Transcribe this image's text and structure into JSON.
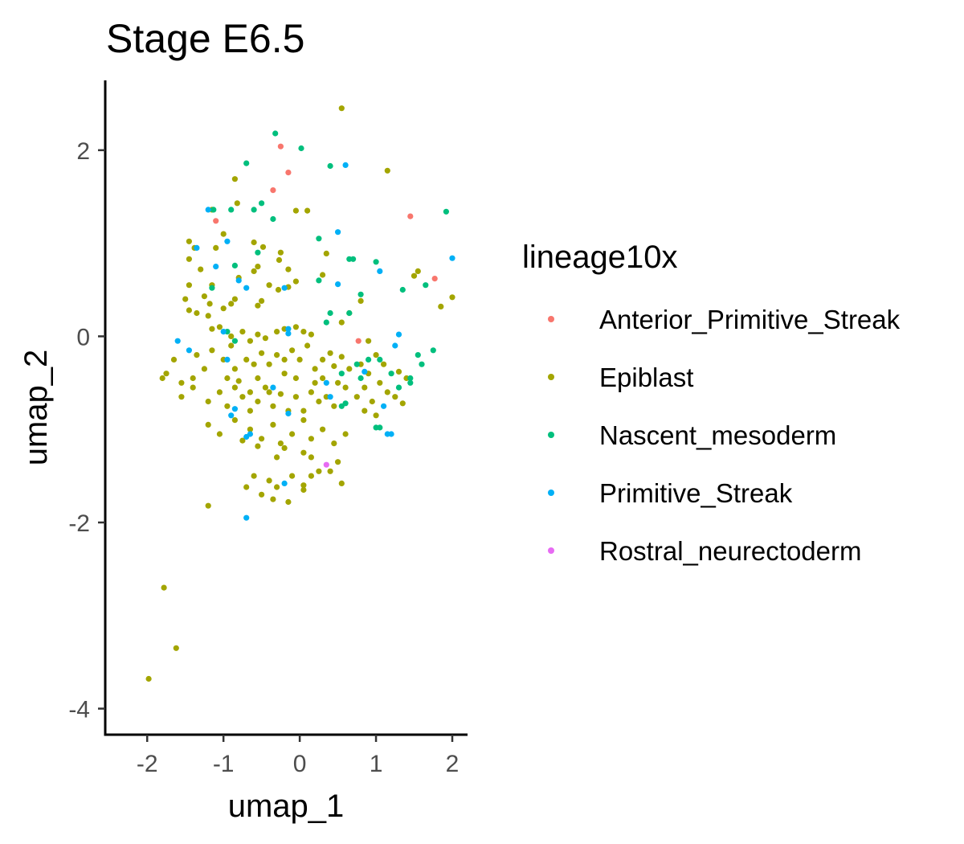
{
  "chart_data": {
    "type": "scatter",
    "title": "Stage E6.5",
    "xlabel": "umap_1",
    "ylabel": "umap_2",
    "xlim": [
      -2.55,
      2.2
    ],
    "ylim": [
      -4.28,
      2.75
    ],
    "xticks": [
      -2,
      -1,
      0,
      1,
      2
    ],
    "yticks": [
      -4,
      -2,
      0,
      2
    ],
    "xtick_labels": [
      "-2",
      "-1",
      "0",
      "1",
      "2"
    ],
    "ytick_labels": [
      "-4",
      "-2",
      "0",
      "2"
    ],
    "grid": false,
    "legend": {
      "title": "lineage10x",
      "position": "right"
    },
    "series": [
      {
        "name": "Anterior_Primitive_Streak",
        "color": "#F8766D",
        "points": [
          [
            -0.25,
            2.04
          ],
          [
            -0.15,
            1.76
          ],
          [
            -0.35,
            1.57
          ],
          [
            1.45,
            1.29
          ],
          [
            1.77,
            0.62
          ],
          [
            -1.1,
            1.24
          ],
          [
            0.77,
            -0.05
          ]
        ]
      },
      {
        "name": "Epiblast",
        "color": "#A3A500",
        "points": [
          [
            0.55,
            2.45
          ],
          [
            1.15,
            1.78
          ],
          [
            -0.85,
            1.69
          ],
          [
            -1.0,
            1.1
          ],
          [
            -0.05,
            1.35
          ],
          [
            0.1,
            1.35
          ],
          [
            -0.82,
            1.43
          ],
          [
            -1.15,
            1.36
          ],
          [
            -1.45,
            1.02
          ],
          [
            -1.38,
            0.95
          ],
          [
            -1.45,
            0.83
          ],
          [
            -1.1,
            0.95
          ],
          [
            -1.3,
            0.72
          ],
          [
            -0.6,
            1.01
          ],
          [
            -0.48,
            0.96
          ],
          [
            -0.25,
            0.9
          ],
          [
            -0.15,
            0.72
          ],
          [
            -0.55,
            0.75
          ],
          [
            -0.27,
            0.82
          ],
          [
            0.35,
            0.89
          ],
          [
            0.3,
            0.66
          ],
          [
            -0.4,
            0.55
          ],
          [
            -0.8,
            0.63
          ],
          [
            -0.6,
            0.7
          ],
          [
            -0.15,
            0.53
          ],
          [
            -0.28,
            0.5
          ],
          [
            -0.05,
            0.59
          ],
          [
            -1.15,
            0.55
          ],
          [
            -1.45,
            0.55
          ],
          [
            -1.5,
            0.4
          ],
          [
            -1.25,
            0.43
          ],
          [
            -1.18,
            0.35
          ],
          [
            -1.35,
            0.25
          ],
          [
            -1.45,
            0.28
          ],
          [
            -1.2,
            0.22
          ],
          [
            -1.0,
            0.3
          ],
          [
            -0.9,
            0.35
          ],
          [
            -0.85,
            0.4
          ],
          [
            -0.55,
            0.33
          ],
          [
            -0.5,
            0.38
          ],
          [
            -1.15,
            0.08
          ],
          [
            -1.05,
            0.1
          ],
          [
            -0.9,
            0.0
          ],
          [
            -0.75,
            0.05
          ],
          [
            -0.65,
            -0.05
          ],
          [
            -0.55,
            0.02
          ],
          [
            -0.45,
            -0.02
          ],
          [
            -0.3,
            0.05
          ],
          [
            -0.2,
            0.08
          ],
          [
            -0.05,
            0.1
          ],
          [
            0.05,
            0.05
          ],
          [
            0.15,
            0.02
          ],
          [
            -1.75,
            -0.4
          ],
          [
            -1.8,
            -0.45
          ],
          [
            -1.65,
            -0.25
          ],
          [
            -1.55,
            -0.5
          ],
          [
            -1.4,
            -0.45
          ],
          [
            -1.35,
            -0.2
          ],
          [
            -1.25,
            -0.35
          ],
          [
            -1.15,
            -0.15
          ],
          [
            -1.0,
            -0.25
          ],
          [
            -0.9,
            -0.1
          ],
          [
            -0.85,
            -0.35
          ],
          [
            -0.7,
            -0.25
          ],
          [
            -0.6,
            -0.3
          ],
          [
            -0.5,
            -0.18
          ],
          [
            -0.4,
            -0.3
          ],
          [
            -0.3,
            -0.2
          ],
          [
            -0.2,
            -0.25
          ],
          [
            -0.1,
            -0.15
          ],
          [
            0.0,
            -0.25
          ],
          [
            0.1,
            -0.1
          ],
          [
            0.2,
            -0.35
          ],
          [
            0.3,
            -0.25
          ],
          [
            0.4,
            -0.18
          ],
          [
            0.45,
            -0.32
          ],
          [
            0.55,
            -0.22
          ],
          [
            0.65,
            -0.35
          ],
          [
            -1.55,
            -0.65
          ],
          [
            -1.4,
            -0.55
          ],
          [
            -1.2,
            -0.7
          ],
          [
            -1.05,
            -0.6
          ],
          [
            -0.95,
            -0.75
          ],
          [
            -0.85,
            -0.55
          ],
          [
            -0.75,
            -0.65
          ],
          [
            -0.65,
            -0.8
          ],
          [
            -0.55,
            -0.7
          ],
          [
            -0.45,
            -0.55
          ],
          [
            -0.35,
            -0.75
          ],
          [
            -0.25,
            -0.62
          ],
          [
            -0.15,
            -0.8
          ],
          [
            -0.05,
            -0.65
          ],
          [
            0.05,
            -0.8
          ],
          [
            0.15,
            -0.6
          ],
          [
            0.25,
            -0.7
          ],
          [
            0.35,
            -0.65
          ],
          [
            0.45,
            -0.75
          ],
          [
            0.6,
            -0.55
          ],
          [
            0.75,
            -0.65
          ],
          [
            0.85,
            -0.55
          ],
          [
            0.95,
            -0.7
          ],
          [
            1.05,
            -0.5
          ],
          [
            1.15,
            -0.6
          ],
          [
            -1.2,
            -0.95
          ],
          [
            -1.05,
            -1.05
          ],
          [
            -0.85,
            -0.9
          ],
          [
            -0.65,
            -1.0
          ],
          [
            -0.5,
            -1.1
          ],
          [
            -0.35,
            -0.95
          ],
          [
            -0.25,
            -1.15
          ],
          [
            -0.1,
            -1.05
          ],
          [
            0.05,
            -0.9
          ],
          [
            0.15,
            -1.1
          ],
          [
            0.3,
            -1.0
          ],
          [
            0.45,
            -1.15
          ],
          [
            0.6,
            -1.05
          ],
          [
            -0.75,
            -1.12
          ],
          [
            -0.55,
            -1.18
          ],
          [
            -0.3,
            -1.3
          ],
          [
            -0.2,
            -1.2
          ],
          [
            0.05,
            -1.25
          ],
          [
            0.15,
            -1.3
          ],
          [
            0.25,
            -1.45
          ],
          [
            0.4,
            -1.45
          ],
          [
            0.5,
            -1.35
          ],
          [
            -0.6,
            -1.5
          ],
          [
            -0.4,
            -1.55
          ],
          [
            -0.3,
            -1.62
          ],
          [
            -0.1,
            -1.5
          ],
          [
            0.05,
            -1.6
          ],
          [
            0.15,
            -1.5
          ],
          [
            0.55,
            -1.58
          ],
          [
            -0.7,
            -1.62
          ],
          [
            -0.5,
            -1.7
          ],
          [
            -0.35,
            -1.75
          ],
          [
            -0.15,
            -1.78
          ],
          [
            0.05,
            -1.65
          ],
          [
            -1.2,
            -1.82
          ],
          [
            -1.78,
            -2.7
          ],
          [
            -1.62,
            -3.35
          ],
          [
            -1.98,
            -3.68
          ],
          [
            1.5,
            0.65
          ],
          [
            1.55,
            0.7
          ],
          [
            1.85,
            0.32
          ],
          [
            2.0,
            0.42
          ],
          [
            0.8,
            0.38
          ],
          [
            0.65,
            0.25
          ],
          [
            0.55,
            0.15
          ],
          [
            0.9,
            -0.05
          ],
          [
            1.0,
            -0.2
          ],
          [
            0.9,
            -0.4
          ],
          [
            0.8,
            -0.3
          ],
          [
            1.3,
            -0.38
          ],
          [
            1.4,
            -0.45
          ],
          [
            1.35,
            -0.72
          ],
          [
            1.25,
            -0.65
          ],
          [
            0.85,
            -0.8
          ],
          [
            1.0,
            -0.85
          ],
          [
            -0.95,
            -0.45
          ],
          [
            -0.8,
            -0.48
          ],
          [
            0.2,
            -0.5
          ],
          [
            0.3,
            -0.45
          ],
          [
            -0.05,
            -0.45
          ],
          [
            -0.2,
            -0.4
          ],
          [
            -0.55,
            -0.45
          ],
          [
            -0.4,
            -0.6
          ],
          [
            -0.65,
            -0.6
          ],
          [
            0.5,
            -0.5
          ],
          [
            1.1,
            -0.3
          ]
        ]
      },
      {
        "name": "Nascent_mesoderm",
        "color": "#00BF7D",
        "points": [
          [
            -0.32,
            2.18
          ],
          [
            0.02,
            2.02
          ],
          [
            -0.7,
            1.86
          ],
          [
            0.4,
            1.83
          ],
          [
            1.92,
            1.34
          ],
          [
            -1.13,
            1.36
          ],
          [
            -0.6,
            1.36
          ],
          [
            -0.5,
            1.43
          ],
          [
            -0.35,
            1.26
          ],
          [
            -0.9,
            1.36
          ],
          [
            -0.85,
            0.76
          ],
          [
            -1.15,
            0.52
          ],
          [
            -0.55,
            0.9
          ],
          [
            0.25,
            1.05
          ],
          [
            0.7,
            0.83
          ],
          [
            0.65,
            0.83
          ],
          [
            1.0,
            0.8
          ],
          [
            0.25,
            0.6
          ],
          [
            0.8,
            0.45
          ],
          [
            1.35,
            0.5
          ],
          [
            1.65,
            0.55
          ],
          [
            0.4,
            0.25
          ],
          [
            0.65,
            0.25
          ],
          [
            0.35,
            0.15
          ],
          [
            0.55,
            -0.4
          ],
          [
            0.75,
            -0.3
          ],
          [
            0.8,
            -0.45
          ],
          [
            0.9,
            -0.25
          ],
          [
            1.05,
            -0.25
          ],
          [
            1.2,
            -0.4
          ],
          [
            1.3,
            -0.55
          ],
          [
            1.45,
            -0.5
          ],
          [
            1.55,
            -0.2
          ],
          [
            1.6,
            -0.3
          ],
          [
            1.75,
            -0.15
          ],
          [
            1.45,
            -0.45
          ],
          [
            1.0,
            -0.98
          ],
          [
            1.05,
            -0.98
          ],
          [
            -0.95,
            0.05
          ],
          [
            -0.85,
            -0.05
          ],
          [
            0.6,
            -0.72
          ],
          [
            0.55,
            -0.75
          ]
        ]
      },
      {
        "name": "Primitive_Streak",
        "color": "#00B0F6",
        "points": [
          [
            0.6,
            1.84
          ],
          [
            0.5,
            1.12
          ],
          [
            2.0,
            0.84
          ],
          [
            1.05,
            0.7
          ],
          [
            0.5,
            0.56
          ],
          [
            -1.2,
            1.36
          ],
          [
            -1.35,
            0.95
          ],
          [
            -0.95,
            1.02
          ],
          [
            -1.1,
            0.75
          ],
          [
            -0.8,
            0.6
          ],
          [
            -0.7,
            0.52
          ],
          [
            -0.2,
            0.52
          ],
          [
            -0.15,
            0.08
          ],
          [
            -0.15,
            0.03
          ],
          [
            -1.6,
            -0.05
          ],
          [
            -1.45,
            -0.15
          ],
          [
            -1.0,
            0.05
          ],
          [
            -0.95,
            -0.25
          ],
          [
            -0.85,
            -0.78
          ],
          [
            -0.9,
            -0.85
          ],
          [
            -0.7,
            -1.08
          ],
          [
            -0.65,
            -1.05
          ],
          [
            -0.15,
            -0.83
          ],
          [
            0.35,
            -0.5
          ],
          [
            0.4,
            -0.65
          ],
          [
            0.85,
            -0.38
          ],
          [
            1.1,
            -0.75
          ],
          [
            1.2,
            -1.05
          ],
          [
            1.15,
            -1.05
          ],
          [
            1.3,
            0.02
          ],
          [
            1.25,
            -0.1
          ],
          [
            -0.7,
            -1.95
          ],
          [
            -0.35,
            -0.55
          ],
          [
            -0.2,
            -1.58
          ]
        ]
      },
      {
        "name": "Rostral_neurectoderm",
        "color": "#E76BF3",
        "points": [
          [
            0.35,
            -1.38
          ]
        ]
      }
    ]
  }
}
